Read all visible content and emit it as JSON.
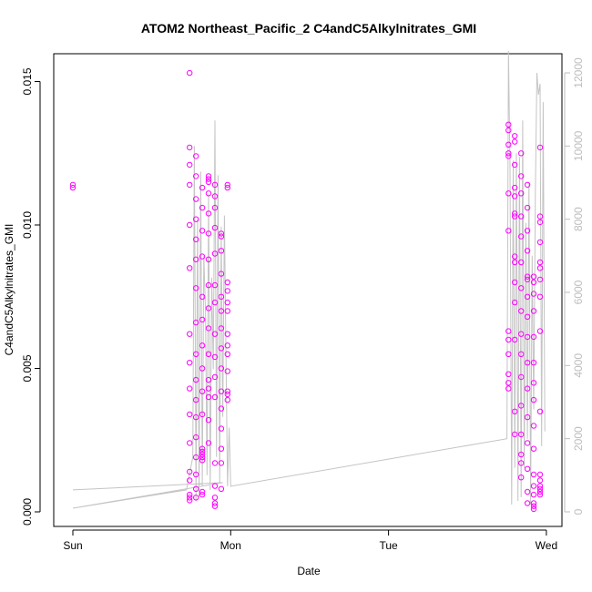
{
  "chart_data": {
    "type": "scatter",
    "title": "ATOM2 Northeast_Pacific_2 C4andC5Alkylnitrates_GMI",
    "xlabel": "Date",
    "ylabel": "C4andC5Alkylnitrates_GMI",
    "x_ticks": [
      "Sun",
      "Mon",
      "Tue",
      "Wed"
    ],
    "y_ticks": [
      "0.000",
      "0.005",
      "0.010",
      "0.015"
    ],
    "y2_ticks": [
      "0",
      "2000",
      "4000",
      "6000",
      "8000",
      "10000",
      "12000"
    ],
    "ylim": [
      0,
      0.0158
    ],
    "y2lim": [
      0,
      12000
    ],
    "grid": false,
    "colors": {
      "points": "#ff00ff",
      "secondary_line": "#c4c4c4",
      "secondary_axis": "#bdbdbd"
    },
    "series": [
      {
        "kind": "points",
        "clusters": [
          {
            "x": 0.0,
            "y": [
              0.0114,
              0.0113
            ]
          },
          {
            "x": 0.74,
            "y": [
              0.0153,
              0.0127,
              0.0121,
              0.0114,
              0.01,
              0.0085,
              0.0062,
              0.0052,
              0.0043,
              0.0034,
              0.0024,
              0.0014,
              0.0011,
              0.0006,
              0.0005,
              0.0004
            ]
          },
          {
            "x": 0.78,
            "y": [
              0.0124,
              0.0117,
              0.0109,
              0.0102,
              0.0095,
              0.0088,
              0.0078,
              0.0066,
              0.0055,
              0.0046,
              0.0039,
              0.0033,
              0.0026,
              0.0019,
              0.0013,
              0.0008,
              0.0005
            ]
          },
          {
            "x": 0.82,
            "y": [
              0.0113,
              0.0106,
              0.0098,
              0.0089,
              0.0075,
              0.0067,
              0.0058,
              0.005,
              0.0042,
              0.0034,
              0.0022,
              0.0021,
              0.002,
              0.0019,
              0.0018,
              0.0007,
              0.0006
            ]
          },
          {
            "x": 0.86,
            "y": [
              0.0117,
              0.0116,
              0.0115,
              0.0111,
              0.0104,
              0.0097,
              0.0088,
              0.0079,
              0.0071,
              0.0064,
              0.0055,
              0.0046,
              0.0043,
              0.004,
              0.0032,
              0.0024
            ]
          },
          {
            "x": 0.9,
            "y": [
              0.0114,
              0.011,
              0.0106,
              0.0099,
              0.009,
              0.0079,
              0.0073,
              0.0062,
              0.0054,
              0.0047,
              0.004,
              0.0017,
              0.0009,
              0.0005,
              0.0003,
              0.0002
            ]
          },
          {
            "x": 0.94,
            "y": [
              0.0097,
              0.0096,
              0.0091,
              0.0083,
              0.0075,
              0.007,
              0.0064,
              0.0057,
              0.005,
              0.0042,
              0.0036,
              0.0029,
              0.0022,
              0.0017,
              0.0008
            ]
          },
          {
            "x": 0.98,
            "y": [
              0.0114,
              0.0113,
              0.008,
              0.0077,
              0.0073,
              0.007,
              0.0062,
              0.0058,
              0.0055,
              0.0049,
              0.0042,
              0.0041,
              0.0039
            ]
          },
          {
            "x": 2.76,
            "y": [
              0.0135,
              0.0133,
              0.0128,
              0.0125,
              0.0124,
              0.0111,
              0.0098,
              0.0063,
              0.006,
              0.0055,
              0.0048,
              0.0045,
              0.0043
            ]
          },
          {
            "x": 2.8,
            "y": [
              0.0131,
              0.0129,
              0.0121,
              0.0113,
              0.011,
              0.0104,
              0.0103,
              0.0089,
              0.0087,
              0.008,
              0.0073,
              0.006,
              0.0035,
              0.0027
            ]
          },
          {
            "x": 2.84,
            "y": [
              0.0125,
              0.0117,
              0.0111,
              0.0103,
              0.0096,
              0.0087,
              0.0078,
              0.007,
              0.0062,
              0.0055,
              0.0047,
              0.0037,
              0.0027,
              0.002,
              0.0017,
              0.0012
            ]
          },
          {
            "x": 2.88,
            "y": [
              0.0114,
              0.0106,
              0.0098,
              0.0091,
              0.0082,
              0.0081,
              0.0075,
              0.0068,
              0.0061,
              0.0052,
              0.0043,
              0.0033,
              0.0024,
              0.0015,
              0.0007,
              0.0003
            ]
          },
          {
            "x": 2.92,
            "y": [
              0.0082,
              0.008,
              0.0076,
              0.007,
              0.0061,
              0.0052,
              0.0045,
              0.0039,
              0.003,
              0.0022,
              0.0013,
              0.0009,
              0.0006,
              0.0003,
              0.0002,
              0.0001
            ]
          },
          {
            "x": 2.96,
            "y": [
              0.0127,
              0.0103,
              0.0101,
              0.0094,
              0.0087,
              0.0085,
              0.0081,
              0.0075,
              0.0063,
              0.0035,
              0.0013,
              0.0011,
              0.0009,
              0.0008,
              0.0007,
              0.0006
            ]
          }
        ]
      },
      {
        "kind": "secondary-line",
        "axis": "right",
        "points": [
          [
            0.0,
            600
          ],
          [
            0.95,
            800
          ],
          [
            0.0,
            100
          ],
          [
            0.72,
            600
          ],
          [
            0.76,
            1500
          ],
          [
            0.77,
            10000
          ],
          [
            0.78,
            300
          ],
          [
            0.79,
            8000
          ],
          [
            0.8,
            400
          ],
          [
            0.81,
            9300
          ],
          [
            0.82,
            700
          ],
          [
            0.83,
            7000
          ],
          [
            0.84,
            5500
          ],
          [
            0.85,
            1000
          ],
          [
            0.86,
            8700
          ],
          [
            0.87,
            600
          ],
          [
            0.88,
            6400
          ],
          [
            0.89,
            3900
          ],
          [
            0.9,
            10700
          ],
          [
            0.91,
            1500
          ],
          [
            0.92,
            9200
          ],
          [
            0.93,
            800
          ],
          [
            0.94,
            7800
          ],
          [
            0.95,
            2600
          ],
          [
            0.96,
            8100
          ],
          [
            0.97,
            4300
          ],
          [
            0.98,
            700
          ],
          [
            0.99,
            2300
          ],
          [
            1.0,
            700
          ],
          [
            2.75,
            2000
          ],
          [
            2.76,
            12600
          ],
          [
            2.77,
            9400
          ],
          [
            2.78,
            200
          ],
          [
            2.79,
            9600
          ],
          [
            2.8,
            1200
          ],
          [
            2.81,
            9800
          ],
          [
            2.82,
            300
          ],
          [
            2.83,
            9700
          ],
          [
            2.84,
            400
          ],
          [
            2.85,
            10700
          ],
          [
            2.86,
            1200
          ],
          [
            2.87,
            7900
          ],
          [
            2.88,
            2000
          ],
          [
            2.89,
            9000
          ],
          [
            2.9,
            200
          ],
          [
            2.91,
            7000
          ],
          [
            2.92,
            2800
          ],
          [
            2.93,
            8700
          ],
          [
            2.94,
            12000
          ],
          [
            2.95,
            11400
          ],
          [
            2.96,
            11700
          ],
          [
            2.97,
            1800
          ],
          [
            2.98,
            11200
          ],
          [
            2.99,
            2200
          ]
        ]
      }
    ]
  }
}
